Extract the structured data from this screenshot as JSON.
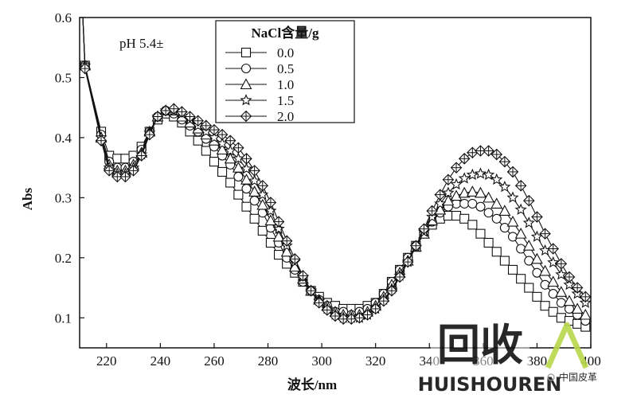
{
  "chart_data": {
    "type": "line",
    "title": "",
    "xlabel": "波长/nm",
    "ylabel": "Abs",
    "xlim": [
      210,
      400
    ],
    "ylim": [
      0.05,
      0.6
    ],
    "xticks": [
      220,
      240,
      260,
      280,
      300,
      320,
      340,
      360,
      380,
      400
    ],
    "yticks": [
      0.1,
      0.2,
      0.3,
      0.4,
      0.5,
      0.6
    ],
    "grid": false,
    "legend": {
      "title": "NaCl含量/g",
      "position": "top-center"
    },
    "annotation": "pH 5.4±",
    "series": [
      {
        "name": "0.0",
        "marker": "square",
        "x": [
          212,
          218,
          221,
          224,
          227,
          230,
          233,
          236,
          239,
          242,
          245,
          248,
          251,
          254,
          257,
          260,
          263,
          266,
          269,
          272,
          275,
          278,
          281,
          284,
          287,
          290,
          293,
          296,
          299,
          302,
          305,
          308,
          311,
          314,
          317,
          320,
          323,
          326,
          329,
          332,
          335,
          338,
          341,
          344,
          347,
          350,
          353,
          356,
          359,
          362,
          365,
          368,
          371,
          374,
          377,
          380,
          383,
          386,
          389,
          392,
          395,
          398
        ],
        "y": [
          0.52,
          0.41,
          0.37,
          0.365,
          0.365,
          0.37,
          0.385,
          0.41,
          0.43,
          0.44,
          0.435,
          0.425,
          0.41,
          0.395,
          0.378,
          0.36,
          0.343,
          0.325,
          0.305,
          0.285,
          0.265,
          0.245,
          0.225,
          0.205,
          0.19,
          0.175,
          0.16,
          0.145,
          0.135,
          0.125,
          0.12,
          0.115,
          0.115,
          0.115,
          0.12,
          0.125,
          0.14,
          0.16,
          0.18,
          0.2,
          0.22,
          0.24,
          0.255,
          0.265,
          0.27,
          0.27,
          0.265,
          0.255,
          0.24,
          0.225,
          0.21,
          0.195,
          0.18,
          0.165,
          0.15,
          0.135,
          0.12,
          0.11,
          0.1,
          0.095,
          0.09,
          0.085
        ]
      },
      {
        "name": "0.5",
        "marker": "circle",
        "x": [
          212,
          218,
          221,
          224,
          227,
          230,
          233,
          236,
          239,
          242,
          245,
          248,
          251,
          254,
          257,
          260,
          263,
          266,
          269,
          272,
          275,
          278,
          281,
          284,
          287,
          290,
          293,
          296,
          299,
          302,
          305,
          308,
          311,
          314,
          317,
          320,
          323,
          326,
          329,
          332,
          335,
          338,
          341,
          344,
          347,
          350,
          353,
          356,
          359,
          362,
          365,
          368,
          371,
          374,
          377,
          380,
          383,
          386,
          389,
          392,
          395,
          398
        ],
        "y": [
          0.52,
          0.405,
          0.36,
          0.35,
          0.35,
          0.36,
          0.38,
          0.41,
          0.435,
          0.445,
          0.44,
          0.43,
          0.42,
          0.41,
          0.398,
          0.385,
          0.37,
          0.355,
          0.335,
          0.315,
          0.295,
          0.275,
          0.25,
          0.225,
          0.2,
          0.18,
          0.16,
          0.145,
          0.13,
          0.12,
          0.11,
          0.11,
          0.105,
          0.11,
          0.115,
          0.125,
          0.14,
          0.16,
          0.18,
          0.2,
          0.22,
          0.24,
          0.26,
          0.275,
          0.285,
          0.29,
          0.29,
          0.29,
          0.285,
          0.275,
          0.265,
          0.25,
          0.235,
          0.215,
          0.195,
          0.175,
          0.155,
          0.14,
          0.125,
          0.115,
          0.105,
          0.095
        ]
      },
      {
        "name": "1.0",
        "marker": "triangle",
        "x": [
          212,
          218,
          221,
          224,
          227,
          230,
          233,
          236,
          239,
          242,
          245,
          248,
          251,
          254,
          257,
          260,
          263,
          266,
          269,
          272,
          275,
          278,
          281,
          284,
          287,
          290,
          293,
          296,
          299,
          302,
          305,
          308,
          311,
          314,
          317,
          320,
          323,
          326,
          329,
          332,
          335,
          338,
          341,
          344,
          347,
          350,
          353,
          356,
          359,
          362,
          365,
          368,
          371,
          374,
          377,
          380,
          383,
          386,
          389,
          392,
          395,
          398
        ],
        "y": [
          0.52,
          0.4,
          0.355,
          0.345,
          0.345,
          0.355,
          0.375,
          0.41,
          0.435,
          0.445,
          0.445,
          0.435,
          0.425,
          0.415,
          0.405,
          0.395,
          0.38,
          0.365,
          0.35,
          0.33,
          0.31,
          0.288,
          0.262,
          0.235,
          0.21,
          0.185,
          0.165,
          0.145,
          0.13,
          0.12,
          0.11,
          0.105,
          0.105,
          0.105,
          0.11,
          0.12,
          0.135,
          0.155,
          0.175,
          0.195,
          0.218,
          0.24,
          0.262,
          0.28,
          0.295,
          0.303,
          0.308,
          0.31,
          0.308,
          0.3,
          0.29,
          0.278,
          0.26,
          0.24,
          0.22,
          0.198,
          0.178,
          0.16,
          0.143,
          0.128,
          0.115,
          0.105
        ]
      },
      {
        "name": "1.5",
        "marker": "star",
        "x": [
          212,
          218,
          221,
          224,
          227,
          230,
          233,
          236,
          239,
          242,
          245,
          248,
          251,
          254,
          257,
          260,
          263,
          266,
          269,
          272,
          275,
          278,
          281,
          284,
          287,
          290,
          293,
          296,
          299,
          302,
          305,
          308,
          311,
          314,
          317,
          320,
          323,
          326,
          329,
          332,
          335,
          338,
          341,
          344,
          347,
          350,
          353,
          356,
          359,
          362,
          365,
          368,
          371,
          374,
          377,
          380,
          383,
          386,
          389,
          392,
          395,
          398
        ],
        "y": [
          0.52,
          0.4,
          0.35,
          0.34,
          0.34,
          0.35,
          0.372,
          0.408,
          0.435,
          0.445,
          0.445,
          0.44,
          0.43,
          0.42,
          0.41,
          0.4,
          0.39,
          0.378,
          0.365,
          0.348,
          0.328,
          0.305,
          0.278,
          0.248,
          0.22,
          0.193,
          0.168,
          0.145,
          0.128,
          0.115,
          0.105,
          0.1,
          0.1,
          0.1,
          0.105,
          0.115,
          0.13,
          0.148,
          0.17,
          0.193,
          0.218,
          0.243,
          0.268,
          0.29,
          0.308,
          0.322,
          0.332,
          0.338,
          0.34,
          0.338,
          0.33,
          0.318,
          0.3,
          0.28,
          0.258,
          0.235,
          0.212,
          0.192,
          0.172,
          0.155,
          0.14,
          0.125
        ]
      },
      {
        "name": "2.0",
        "marker": "diamond",
        "x": [
          212,
          218,
          221,
          224,
          227,
          230,
          233,
          236,
          239,
          242,
          245,
          248,
          251,
          254,
          257,
          260,
          263,
          266,
          269,
          272,
          275,
          278,
          281,
          284,
          287,
          290,
          293,
          296,
          299,
          302,
          305,
          308,
          311,
          314,
          317,
          320,
          323,
          326,
          329,
          332,
          335,
          338,
          341,
          344,
          347,
          350,
          353,
          356,
          359,
          362,
          365,
          368,
          371,
          374,
          377,
          380,
          383,
          386,
          389,
          392,
          395,
          398
        ],
        "y": [
          0.515,
          0.395,
          0.345,
          0.335,
          0.335,
          0.345,
          0.37,
          0.405,
          0.435,
          0.445,
          0.448,
          0.443,
          0.435,
          0.428,
          0.42,
          0.413,
          0.405,
          0.395,
          0.383,
          0.365,
          0.345,
          0.32,
          0.292,
          0.26,
          0.228,
          0.198,
          0.17,
          0.145,
          0.125,
          0.113,
          0.103,
          0.098,
          0.098,
          0.1,
          0.105,
          0.115,
          0.128,
          0.145,
          0.168,
          0.193,
          0.22,
          0.248,
          0.278,
          0.305,
          0.33,
          0.35,
          0.365,
          0.375,
          0.378,
          0.378,
          0.372,
          0.36,
          0.343,
          0.32,
          0.295,
          0.268,
          0.24,
          0.215,
          0.19,
          0.168,
          0.15,
          0.135
        ]
      }
    ]
  },
  "watermark": {
    "logo_text": "回收",
    "brand_text": "HUISHOUREN",
    "account_text": "中国皮革",
    "logo_color": "#b8d84a",
    "brand_color": "#9ccc3c"
  }
}
